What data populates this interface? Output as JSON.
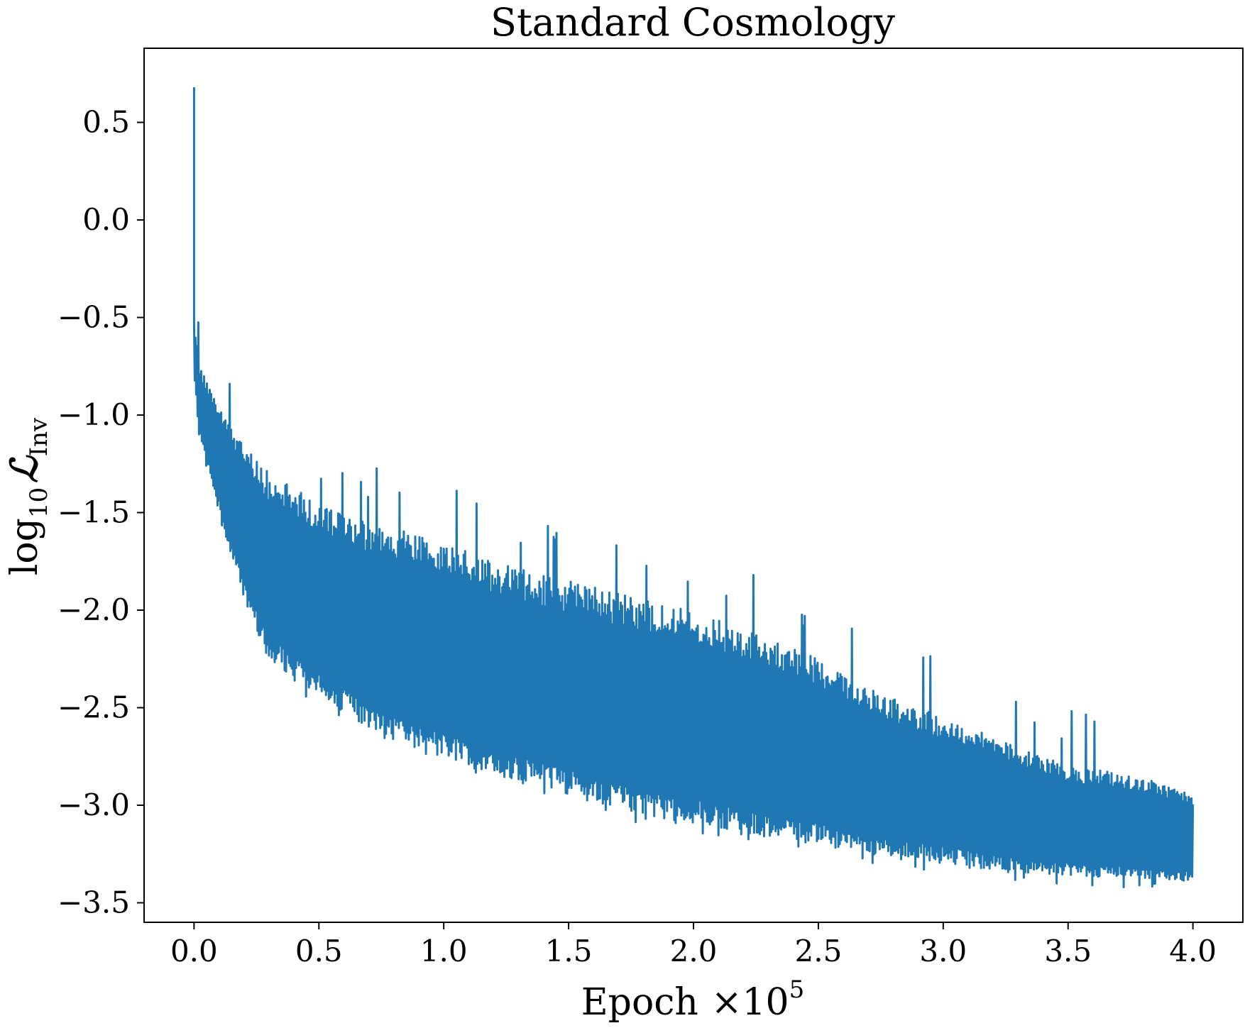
{
  "chart_data": {
    "type": "line",
    "title": "Standard Cosmology",
    "xlabel": {
      "main": "Epoch",
      "multiplier": "×10",
      "exponent": "5"
    },
    "ylabel": {
      "prefix": "log",
      "prefix_sub": "10",
      "symbol": "ℒ",
      "symbol_sub": "Inv"
    },
    "xlim": [
      -0.2,
      4.2
    ],
    "ylim": [
      -3.6,
      0.88
    ],
    "x_ticks": [
      0.0,
      0.5,
      1.0,
      1.5,
      2.0,
      2.5,
      3.0,
      3.5,
      4.0
    ],
    "x_tick_labels": [
      "0.0",
      "0.5",
      "1.0",
      "1.5",
      "2.0",
      "2.5",
      "3.0",
      "3.5",
      "4.0"
    ],
    "y_ticks": [
      0.5,
      0.0,
      -0.5,
      -1.0,
      -1.5,
      -2.0,
      -2.5,
      -3.0,
      -3.5
    ],
    "y_tick_labels": [
      "0.5",
      "0.0",
      "−0.5",
      "−1.0",
      "−1.5",
      "−2.0",
      "−2.5",
      "−3.0",
      "−3.5"
    ],
    "grid": false,
    "series": [
      {
        "color": "#1f77b4",
        "initial_spike": {
          "x": 0.0,
          "y": 0.68
        },
        "x": [
          0.0,
          0.02,
          0.1,
          0.2,
          0.3,
          0.5,
          0.7,
          1.0,
          1.2,
          1.5,
          1.8,
          2.0,
          2.2,
          2.5,
          2.7,
          3.0,
          3.3,
          3.5,
          3.8,
          4.0
        ],
        "upper_envelope": [
          -0.5,
          -0.75,
          -0.95,
          -1.15,
          -1.3,
          -1.45,
          -1.55,
          -1.65,
          -1.75,
          -1.85,
          -1.95,
          -2.0,
          -2.1,
          -2.25,
          -2.4,
          -2.55,
          -2.7,
          -2.8,
          -2.85,
          -2.95
        ],
        "lower_envelope": [
          -0.8,
          -1.1,
          -1.5,
          -1.95,
          -2.25,
          -2.45,
          -2.6,
          -2.75,
          -2.85,
          -2.95,
          -3.05,
          -3.1,
          -3.15,
          -3.2,
          -3.25,
          -3.3,
          -3.35,
          -3.36,
          -3.38,
          -3.39
        ]
      }
    ]
  }
}
